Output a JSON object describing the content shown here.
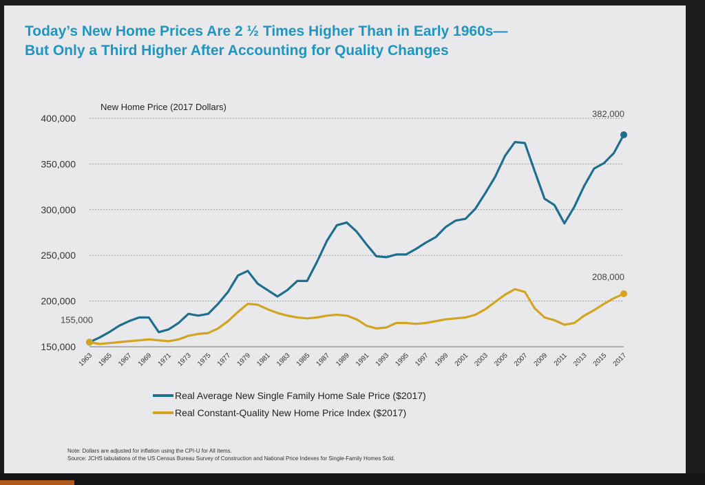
{
  "title": {
    "line1": "Today’s New Home Prices Are 2 ½ Times Higher Than in Early 1960s—",
    "line2": "But Only a Third Higher After Accounting for Quality Changes"
  },
  "notes": {
    "note": "Note: Dollars are adjusted for inflation using the CPI-U for All Items.",
    "source": "Source: JCHS tabulations of the US Census Bureau Survey of Construction and National Price Indexes for Single-Family Homes Sold."
  },
  "chart_data": {
    "type": "line",
    "subtitle": "New Home Price (2017 Dollars)",
    "ylim": [
      150000,
      400000
    ],
    "yticks": [
      "150,000",
      "200,000",
      "250,000",
      "300,000",
      "350,000",
      "400,000"
    ],
    "ytick_values": [
      150000,
      200000,
      250000,
      300000,
      350000,
      400000
    ],
    "xlim": [
      1963,
      2017
    ],
    "xticks": [
      "1963",
      "1965",
      "1967",
      "1969",
      "1971",
      "1973",
      "1975",
      "1977",
      "1979",
      "1981",
      "1983",
      "1985",
      "1987",
      "1989",
      "1991",
      "1993",
      "1995",
      "1997",
      "1999",
      "2001",
      "2003",
      "2005",
      "2007",
      "2009",
      "2011",
      "2013",
      "2015",
      "2017"
    ],
    "x": [
      1963,
      1964,
      1965,
      1966,
      1967,
      1968,
      1969,
      1970,
      1971,
      1972,
      1973,
      1974,
      1975,
      1976,
      1977,
      1978,
      1979,
      1980,
      1981,
      1982,
      1983,
      1984,
      1985,
      1986,
      1987,
      1988,
      1989,
      1990,
      1991,
      1992,
      1993,
      1994,
      1995,
      1996,
      1997,
      1998,
      1999,
      2000,
      2001,
      2002,
      2003,
      2004,
      2005,
      2006,
      2007,
      2008,
      2009,
      2010,
      2011,
      2012,
      2013,
      2014,
      2015,
      2016,
      2017
    ],
    "series": [
      {
        "name": "Real Average New Single Family Home Sale Price ($2017)",
        "color": "#1e6e8e",
        "values": [
          155000,
          160000,
          166000,
          173000,
          178000,
          182000,
          182000,
          166000,
          169000,
          176000,
          186000,
          184000,
          186000,
          197000,
          210000,
          228000,
          233000,
          219000,
          212000,
          205000,
          212000,
          222000,
          222000,
          243000,
          266000,
          283000,
          286000,
          276000,
          262000,
          249000,
          248000,
          251000,
          251000,
          257000,
          264000,
          270000,
          281000,
          288000,
          290000,
          301000,
          318000,
          336000,
          359000,
          374000,
          373000,
          342000,
          312000,
          305000,
          285000,
          303000,
          326000,
          345000,
          351000,
          362000,
          382000
        ]
      },
      {
        "name": "Real Constant-Quality New Home Price Index ($2017)",
        "color": "#d2a41f",
        "values": [
          155000,
          153000,
          154000,
          155000,
          156000,
          157000,
          158000,
          157000,
          156000,
          158000,
          162000,
          164000,
          165000,
          170000,
          178000,
          188000,
          197000,
          196000,
          191000,
          187000,
          184000,
          182000,
          181000,
          182000,
          184000,
          185000,
          184000,
          180000,
          173000,
          170000,
          171000,
          176000,
          176000,
          175000,
          176000,
          178000,
          180000,
          181000,
          182000,
          185000,
          191000,
          199000,
          207000,
          213000,
          210000,
          192000,
          182000,
          179000,
          174000,
          176000,
          184000,
          190000,
          197000,
          203000,
          208000
        ]
      }
    ],
    "annotations": [
      {
        "text": "155,000",
        "x": 1963,
        "y": 155000
      },
      {
        "text": "382,000",
        "x": 2017,
        "y": 382000
      },
      {
        "text": "208,000",
        "x": 2017,
        "y": 208000
      }
    ]
  }
}
